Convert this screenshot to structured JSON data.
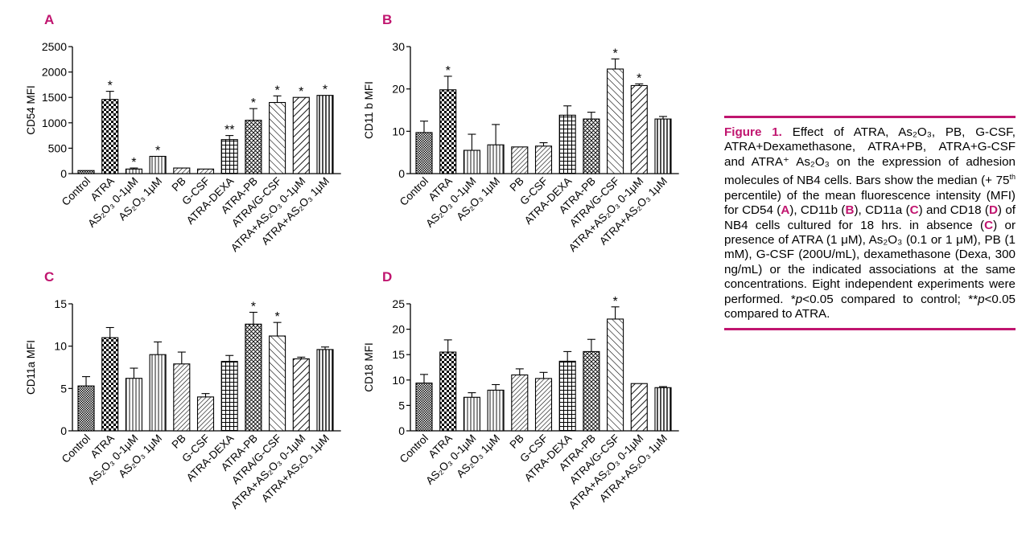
{
  "colors": {
    "accent": "#c0156f",
    "bar_stroke": "#000000"
  },
  "categories": [
    "Control",
    "ATRA",
    "AS₂O₃ 0-1μM",
    "AS₂O₃ 1μM",
    "PB",
    "G-CSF",
    "ATRA-DEXA",
    "ATRA-PB",
    "ATRA/G-CSF",
    "ATRA+AS₂O₃ 0-1μM",
    "ATRA+AS₂O₃ 1μM"
  ],
  "patterns": [
    "fine",
    "check",
    "vlines",
    "vlines",
    "diagfine",
    "diagfine",
    "grid",
    "diagdense",
    "diag",
    "diagbold",
    "vlinesbold"
  ],
  "chart_data": [
    {
      "panel": "A",
      "type": "bar",
      "ylabel": "CD54 MFI",
      "ylim": [
        0,
        2500
      ],
      "yticks": [
        0,
        500,
        1000,
        1500,
        2000,
        2500
      ],
      "values": [
        60,
        1460,
        90,
        340,
        110,
        90,
        670,
        1050,
        1400,
        1500,
        1540
      ],
      "errors": [
        0,
        160,
        20,
        0,
        0,
        0,
        80,
        230,
        130,
        0,
        0
      ],
      "markers": [
        "",
        "*",
        "*",
        "*",
        "",
        "",
        "**",
        "*",
        "*",
        "*",
        "*"
      ]
    },
    {
      "panel": "B",
      "type": "bar",
      "ylabel": "CD11 b MFI",
      "ylim": [
        0,
        30
      ],
      "yticks": [
        0,
        10,
        20,
        30
      ],
      "values": [
        9.7,
        19.8,
        5.5,
        6.8,
        6.3,
        6.5,
        13.8,
        12.9,
        24.7,
        20.8,
        12.9
      ],
      "errors": [
        2.7,
        3.2,
        3.8,
        4.8,
        0,
        0.8,
        2.2,
        1.6,
        2.4,
        0.4,
        0.6
      ],
      "markers": [
        "",
        "*",
        "",
        "",
        "",
        "",
        "",
        "",
        "*",
        "*",
        ""
      ]
    },
    {
      "panel": "C",
      "type": "bar",
      "ylabel": "CD11a MFI",
      "ylim": [
        0,
        15
      ],
      "yticks": [
        0,
        5,
        10,
        15
      ],
      "values": [
        5.3,
        11.0,
        6.2,
        9.0,
        7.9,
        4.0,
        8.2,
        12.6,
        11.2,
        8.5,
        9.6
      ],
      "errors": [
        1.1,
        1.2,
        1.2,
        1.5,
        1.4,
        0.4,
        0.7,
        1.4,
        1.6,
        0.2,
        0.3
      ],
      "markers": [
        "",
        "",
        "",
        "",
        "",
        "",
        "",
        "*",
        "*",
        "",
        ""
      ]
    },
    {
      "panel": "D",
      "type": "bar",
      "ylabel": "CD18 MFI",
      "ylim": [
        0,
        25
      ],
      "yticks": [
        0,
        5,
        10,
        15,
        20,
        25
      ],
      "values": [
        9.4,
        15.5,
        6.6,
        8.0,
        11.0,
        10.3,
        13.7,
        15.6,
        22.0,
        9.3,
        8.5
      ],
      "errors": [
        1.7,
        2.4,
        0.9,
        1.1,
        1.2,
        1.2,
        1.9,
        2.4,
        2.4,
        0,
        0.2
      ],
      "markers": [
        "",
        "",
        "",
        "",
        "",
        "",
        "",
        "",
        "*",
        "",
        ""
      ]
    }
  ],
  "caption": {
    "title": "Figure 1.",
    "p1": " Effect of ATRA, As₂O₃, PB, G-CSF, ATRA+Dexamethasone, ATRA+PB, ATRA+G-CSF and ATRA⁺ As₂O₃ on the expression of adhesion molecules of NB4 cells. Bars show the median (+ 75",
    "sup": "th",
    "p2": " percentile) of the mean fluorescence intensity (MFI) for CD54 (",
    "la": "A",
    "p3": "), CD11b (",
    "lb": "B",
    "p4": "), CD11a (",
    "lc": "C",
    "p5": ") and CD18 (",
    "ld": "D",
    "p6": ") of NB4 cells cultured for 18 hrs. in absence (",
    "lc2": "C",
    "p7": ") or presence of ATRA (1 μM), As₂O₃ (0.1 or 1 μM), PB (1 mM), G-CSF (200U/mL), dexamethasone (Dexa, 300 ng/mL) or the indicated associations at the same concentrations. Eight independent experiments were performed. *",
    "pv1": "p",
    "p8": "<0.05 compared to control; **",
    "pv2": "p",
    "p9": "<0.05 compared to ATRA."
  }
}
